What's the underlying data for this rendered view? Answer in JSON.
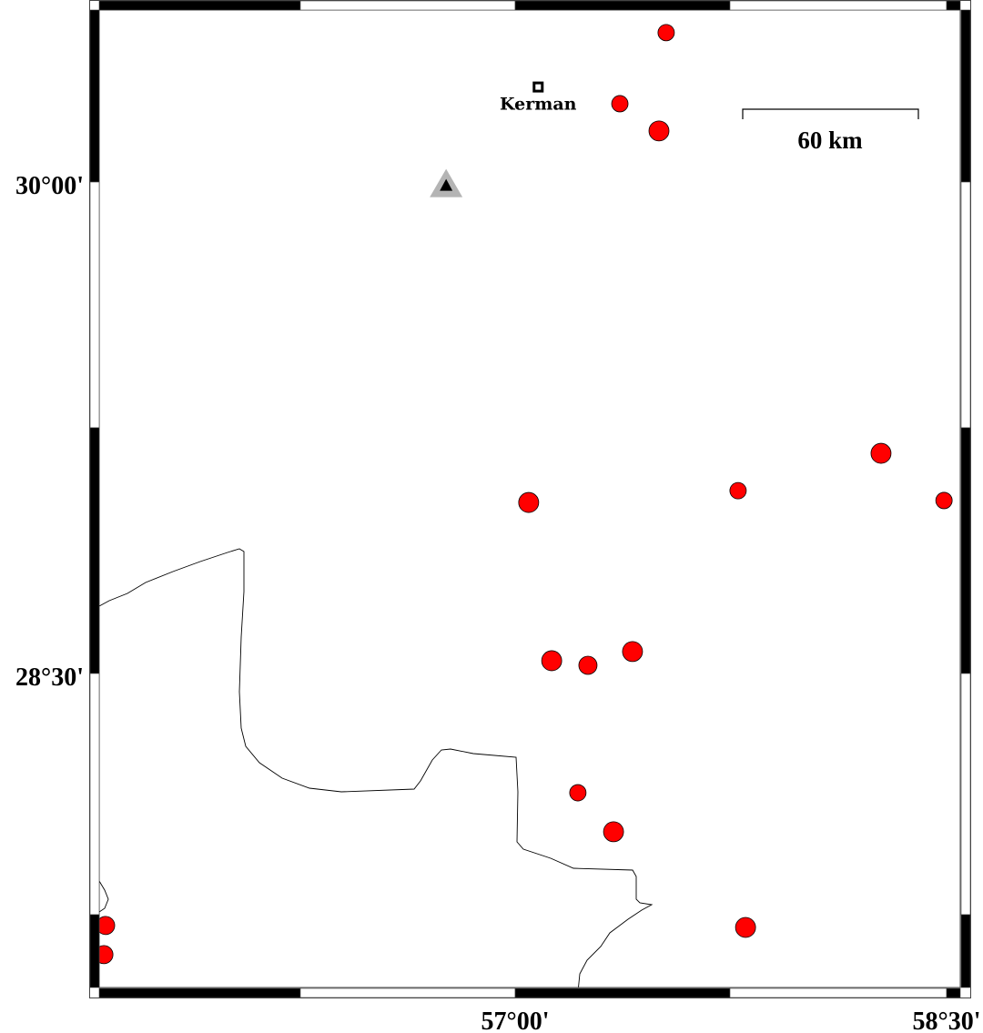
{
  "map": {
    "projection": "geographic",
    "frame_style": "fancy alternating black/white",
    "axis_labels": {
      "lat": [
        "30°00'",
        "28°30'"
      ],
      "lon": [
        "57°00'",
        "58°30'"
      ]
    },
    "scale_bar": {
      "label": "60 km"
    },
    "city": {
      "name": "Kerman",
      "lon": 57.08,
      "lat": 30.29,
      "symbol": "square"
    },
    "station": {
      "lon": 56.76,
      "lat": 29.99,
      "symbol": "triangle",
      "fill": "#000000",
      "halo": "#b4b4b4"
    },
    "event_color": "#ff0000",
    "events": [
      {
        "lon": 57.525,
        "lat": 30.456,
        "size": "small"
      },
      {
        "lon": 57.364,
        "lat": 30.239,
        "size": "small"
      },
      {
        "lon": 57.5,
        "lat": 30.156,
        "size": "large"
      },
      {
        "lon": 57.047,
        "lat": 29.022,
        "size": "large"
      },
      {
        "lon": 57.775,
        "lat": 29.058,
        "size": "small"
      },
      {
        "lon": 58.272,
        "lat": 29.172,
        "size": "large"
      },
      {
        "lon": 58.491,
        "lat": 29.028,
        "size": "small"
      },
      {
        "lon": 57.127,
        "lat": 28.539,
        "size": "large"
      },
      {
        "lon": 57.253,
        "lat": 28.525,
        "size": "medium"
      },
      {
        "lon": 57.408,
        "lat": 28.567,
        "size": "large"
      },
      {
        "lon": 57.218,
        "lat": 28.136,
        "size": "small"
      },
      {
        "lon": 57.342,
        "lat": 28.017,
        "size": "large"
      },
      {
        "lon": 57.801,
        "lat": 27.725,
        "size": "large"
      },
      {
        "lon": 55.576,
        "lat": 27.731,
        "size": "medium"
      },
      {
        "lon": 55.57,
        "lat": 27.642,
        "size": "medium"
      }
    ]
  }
}
